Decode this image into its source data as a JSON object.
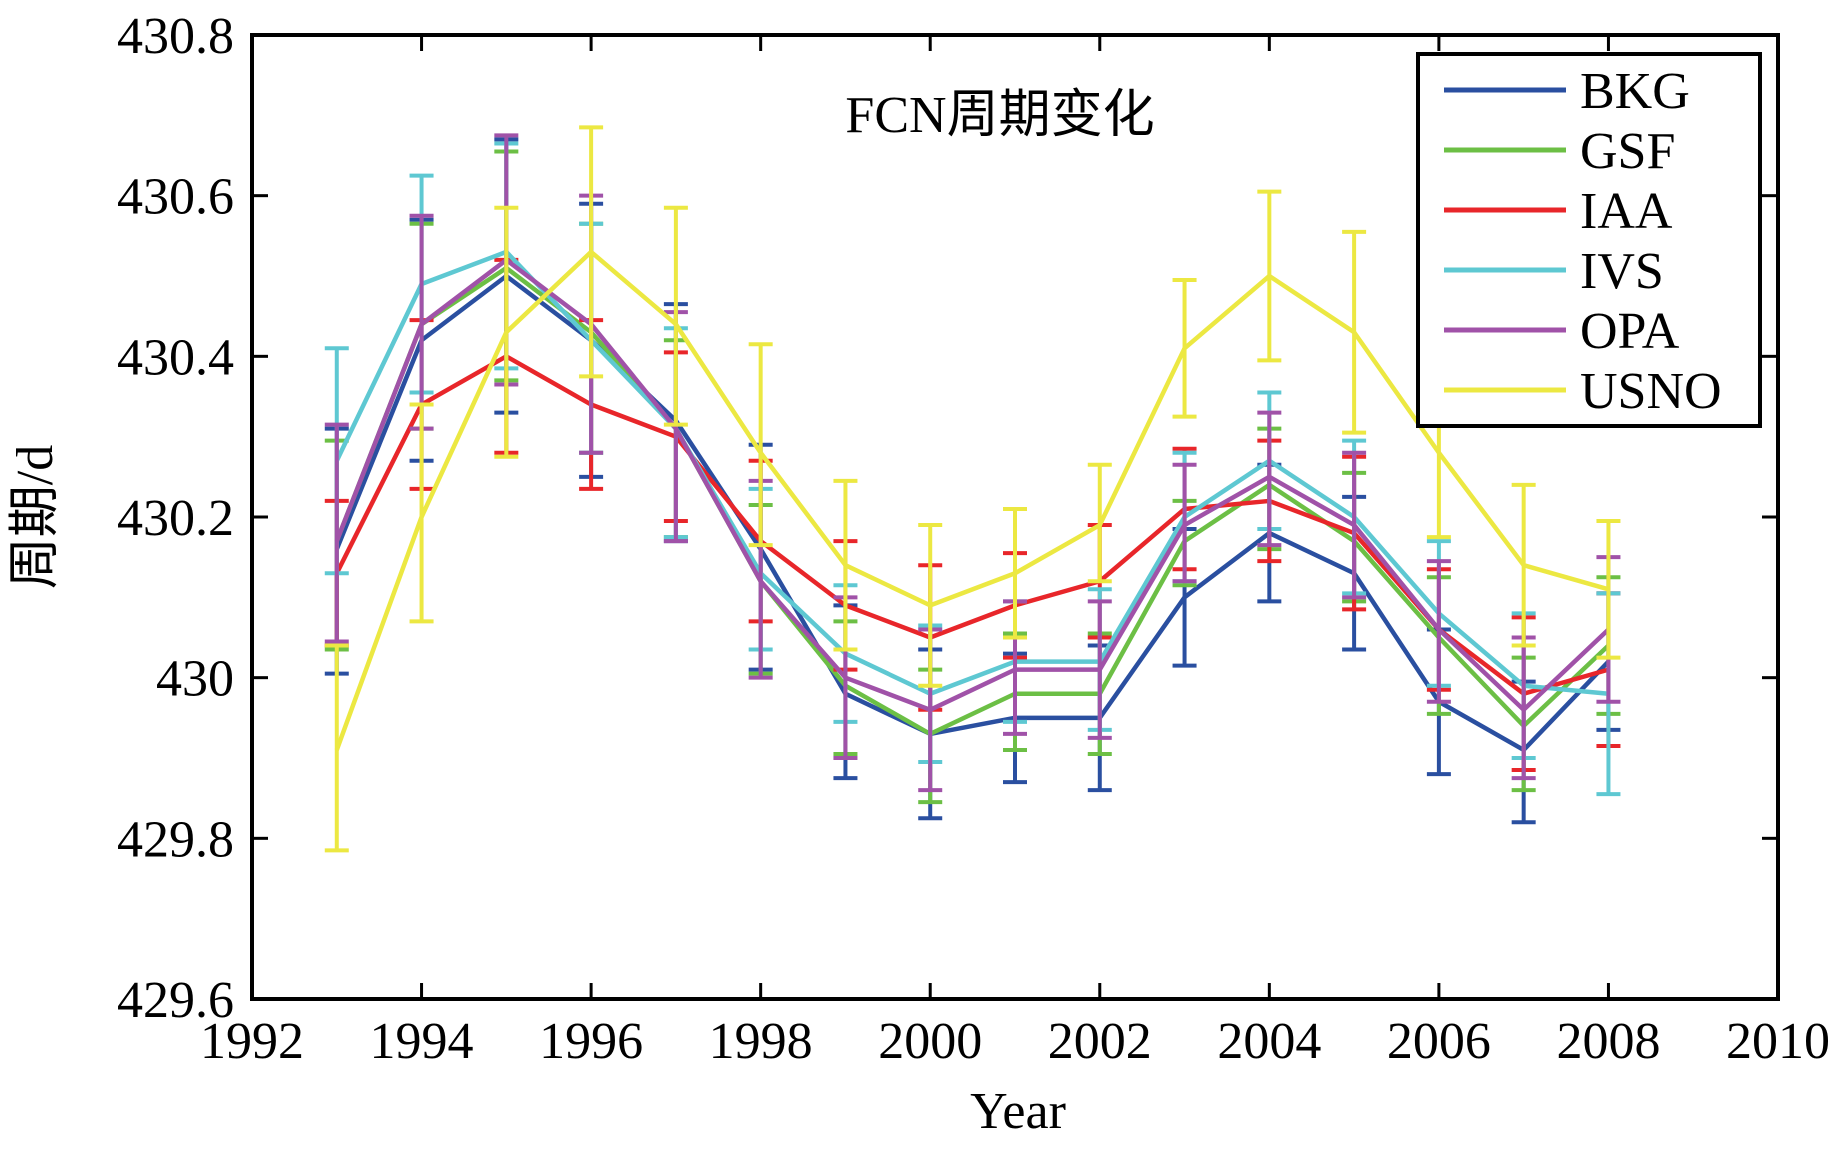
{
  "chart_data": {
    "type": "line",
    "title": "FCN周期变化",
    "xlabel": "Year",
    "ylabel": "周期/d",
    "xlim": [
      1992,
      2010
    ],
    "ylim": [
      429.6,
      430.8
    ],
    "xticks": [
      1992,
      1994,
      1996,
      1998,
      2000,
      2002,
      2004,
      2006,
      2008,
      2010
    ],
    "xtick_labels": [
      "1992",
      "1994",
      "1996",
      "1998",
      "2000",
      "2002",
      "2004",
      "2006",
      "2008",
      "2010"
    ],
    "yticks": [
      429.6,
      429.8,
      430.0,
      430.2,
      430.4,
      430.6,
      430.8
    ],
    "ytick_labels": [
      "429.6",
      "429.8",
      "430",
      "430.2",
      "430.4",
      "430.6",
      "430.8"
    ],
    "legend_position": "top-right",
    "x": [
      1993,
      1994,
      1995,
      1996,
      1997,
      1998,
      1999,
      2000,
      2001,
      2002,
      2003,
      2004,
      2005,
      2006,
      2007,
      2008
    ],
    "series": [
      {
        "name": "BKG",
        "color": "#2a4fa0",
        "values": [
          430.16,
          430.42,
          430.5,
          430.42,
          430.32,
          430.16,
          429.98,
          429.93,
          429.95,
          429.95,
          430.1,
          430.18,
          430.13,
          429.97,
          429.91,
          430.02
        ],
        "err_low": [
          430.005,
          430.27,
          430.33,
          430.25,
          430.17,
          430.01,
          429.875,
          429.825,
          429.87,
          429.86,
          430.015,
          430.095,
          430.035,
          429.88,
          429.82,
          429.935
        ],
        "err_high": [
          430.31,
          430.57,
          430.67,
          430.59,
          430.465,
          430.29,
          430.09,
          430.035,
          430.03,
          430.04,
          430.185,
          430.265,
          430.225,
          430.06,
          429.995,
          430.105
        ]
      },
      {
        "name": "GSF",
        "color": "#6cbf45",
        "values": [
          430.17,
          430.44,
          430.51,
          430.43,
          430.31,
          430.12,
          429.99,
          429.93,
          429.98,
          429.98,
          430.17,
          430.24,
          430.17,
          430.05,
          429.94,
          430.04
        ],
        "err_low": [
          430.035,
          430.31,
          430.37,
          430.28,
          430.175,
          430.005,
          429.905,
          429.845,
          429.91,
          429.905,
          430.115,
          430.16,
          430.095,
          429.955,
          429.86,
          429.955
        ],
        "err_high": [
          430.295,
          430.565,
          430.655,
          430.565,
          430.42,
          430.215,
          430.07,
          430.01,
          430.055,
          430.055,
          430.22,
          430.31,
          430.255,
          430.125,
          430.025,
          430.125
        ]
      },
      {
        "name": "IAA",
        "color": "#e8262a",
        "values": [
          430.13,
          430.34,
          430.4,
          430.34,
          430.3,
          430.17,
          430.09,
          430.05,
          430.09,
          430.12,
          430.21,
          430.22,
          430.18,
          430.06,
          429.98,
          430.01
        ],
        "err_low": [
          430.04,
          430.235,
          430.28,
          430.235,
          430.195,
          430.07,
          430.01,
          429.96,
          430.025,
          430.05,
          430.135,
          430.145,
          430.085,
          429.985,
          429.885,
          429.915
        ],
        "err_high": [
          430.22,
          430.445,
          430.52,
          430.445,
          430.405,
          430.27,
          430.17,
          430.14,
          430.155,
          430.19,
          430.285,
          430.295,
          430.275,
          430.135,
          430.075,
          430.105
        ]
      },
      {
        "name": "IVS",
        "color": "#5ec8d2",
        "values": [
          430.27,
          430.49,
          430.53,
          430.42,
          430.31,
          430.13,
          430.03,
          429.98,
          430.02,
          430.02,
          430.2,
          430.27,
          430.2,
          430.08,
          429.99,
          429.98
        ],
        "err_low": [
          430.13,
          430.355,
          430.385,
          430.28,
          430.175,
          430.035,
          429.945,
          429.895,
          429.945,
          429.935,
          430.12,
          430.185,
          430.105,
          429.99,
          429.9,
          429.855
        ],
        "err_high": [
          430.41,
          430.625,
          430.665,
          430.565,
          430.435,
          430.235,
          430.115,
          430.065,
          430.095,
          430.11,
          430.28,
          430.355,
          430.295,
          430.17,
          430.08,
          430.105
        ]
      },
      {
        "name": "OPA",
        "color": "#a052a8",
        "values": [
          430.17,
          430.44,
          430.52,
          430.44,
          430.31,
          430.12,
          430.0,
          429.96,
          430.01,
          430.01,
          430.19,
          430.25,
          430.19,
          430.06,
          429.96,
          430.06
        ],
        "err_low": [
          430.045,
          430.31,
          430.365,
          430.28,
          430.17,
          430.0,
          429.9,
          429.86,
          429.93,
          429.925,
          430.12,
          430.165,
          430.1,
          429.97,
          429.875,
          429.97
        ],
        "err_high": [
          430.315,
          430.575,
          430.675,
          430.6,
          430.455,
          430.245,
          430.1,
          430.06,
          430.095,
          430.095,
          430.265,
          430.33,
          430.28,
          430.145,
          430.05,
          430.15
        ]
      },
      {
        "name": "USNO",
        "color": "#ece842",
        "values": [
          429.91,
          430.2,
          430.43,
          430.53,
          430.44,
          430.28,
          430.14,
          430.09,
          430.13,
          430.19,
          430.41,
          430.5,
          430.43,
          430.28,
          430.14,
          430.11
        ],
        "err_low": [
          429.785,
          430.07,
          430.275,
          430.375,
          430.315,
          430.165,
          430.035,
          429.99,
          430.05,
          430.12,
          430.325,
          430.395,
          430.305,
          430.175,
          430.04,
          430.025
        ],
        "err_high": [
          430.04,
          430.34,
          430.585,
          430.685,
          430.585,
          430.415,
          430.245,
          430.19,
          430.21,
          430.265,
          430.495,
          430.605,
          430.555,
          430.38,
          430.24,
          430.195
        ]
      }
    ]
  }
}
